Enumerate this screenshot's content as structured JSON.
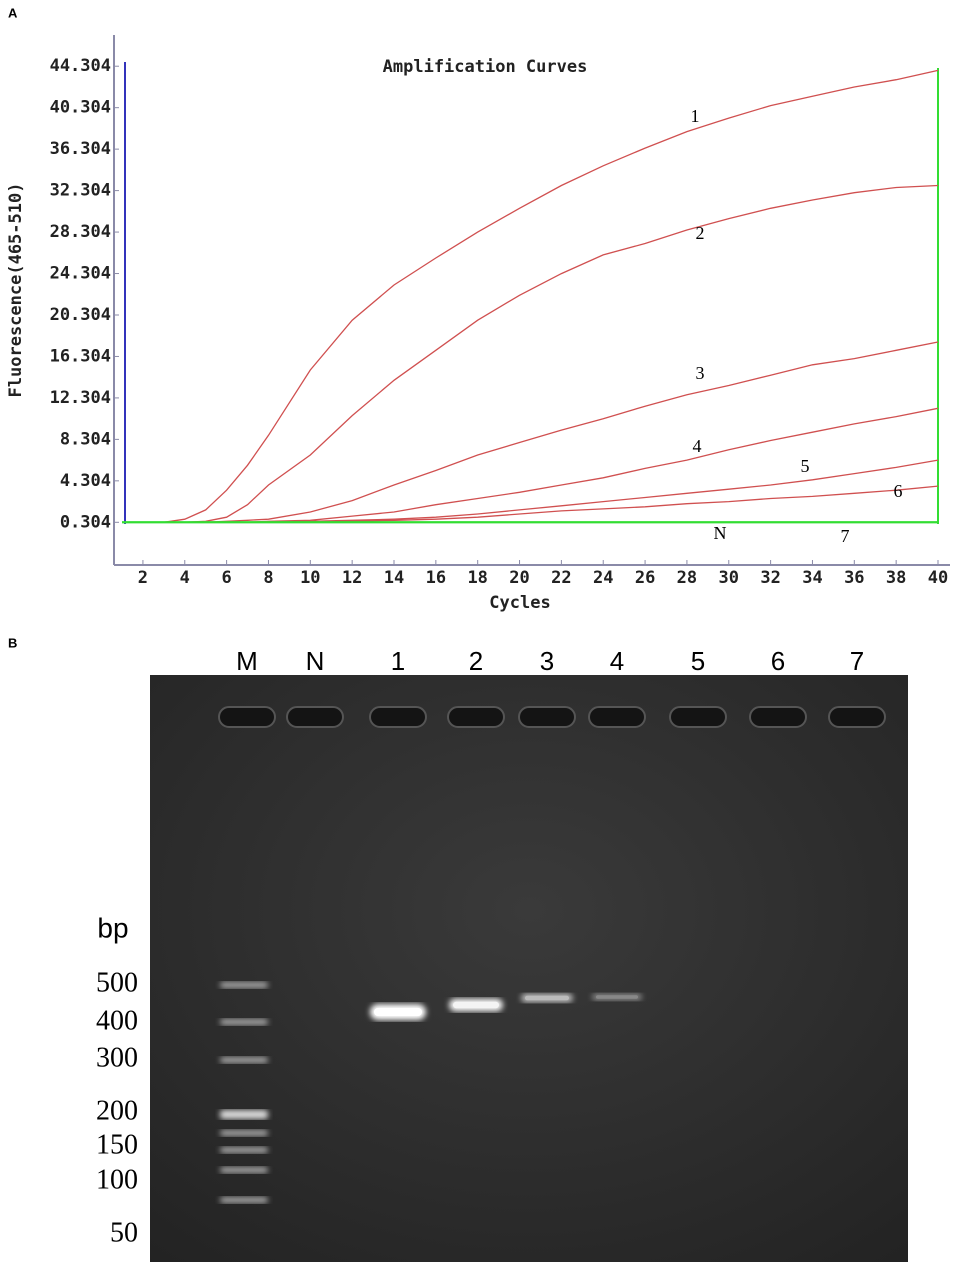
{
  "panel_labels": [
    "A",
    "B"
  ],
  "chart_data": {
    "type": "line",
    "title": "Amplification Curves",
    "x_label": "Cycles",
    "y_label": "Fluorescence(465-510)",
    "x": [
      3,
      4,
      5,
      6,
      7,
      8,
      10,
      12,
      14,
      16,
      18,
      20,
      22,
      24,
      26,
      28,
      30,
      32,
      34,
      36,
      38,
      40
    ],
    "series": [
      {
        "name": "1",
        "color": "#d05050",
        "values": [
          0.3,
          0.6,
          1.5,
          3.4,
          5.8,
          8.7,
          15,
          19.8,
          23.2,
          25.8,
          28.3,
          30.6,
          32.8,
          34.7,
          36.4,
          38,
          39.3,
          40.5,
          41.4,
          42.3,
          43,
          43.9
        ]
      },
      {
        "name": "2",
        "color": "#d05050",
        "values": [
          0.3,
          0.3,
          0.4,
          0.8,
          2,
          3.9,
          6.8,
          10.6,
          14,
          16.9,
          19.8,
          22.2,
          24.3,
          26.1,
          27.2,
          28.5,
          29.6,
          30.6,
          31.4,
          32.1,
          32.6,
          32.8
        ]
      },
      {
        "name": "3",
        "color": "#d05050",
        "values": [
          0.3,
          0.3,
          0.3,
          0.4,
          0.5,
          0.6,
          1.3,
          2.4,
          3.9,
          5.3,
          6.8,
          8,
          9.2,
          10.3,
          11.5,
          12.6,
          13.5,
          14.5,
          15.5,
          16.1,
          16.9,
          17.7
        ]
      },
      {
        "name": "4",
        "color": "#d05050",
        "values": [
          0.3,
          0.3,
          0.3,
          0.3,
          0.3,
          0.4,
          0.5,
          0.9,
          1.3,
          2,
          2.6,
          3.2,
          3.9,
          4.6,
          5.5,
          6.3,
          7.3,
          8.2,
          9,
          9.8,
          10.5,
          11.3
        ]
      },
      {
        "name": "5",
        "color": "#d05050",
        "values": [
          0.3,
          0.3,
          0.3,
          0.3,
          0.3,
          0.3,
          0.4,
          0.5,
          0.6,
          0.8,
          1.1,
          1.5,
          1.9,
          2.3,
          2.7,
          3.1,
          3.5,
          3.9,
          4.4,
          5,
          5.6,
          6.3
        ]
      },
      {
        "name": "6",
        "color": "#d05050",
        "values": [
          0.3,
          0.3,
          0.3,
          0.3,
          0.3,
          0.3,
          0.3,
          0.4,
          0.5,
          0.6,
          0.8,
          1.1,
          1.4,
          1.6,
          1.8,
          2.1,
          2.3,
          2.6,
          2.8,
          3.1,
          3.4,
          3.8
        ]
      },
      {
        "name": "N",
        "color": "#33dd33",
        "values": [
          0.304,
          0.304,
          0.304,
          0.304,
          0.304,
          0.304,
          0.304,
          0.304,
          0.304,
          0.304,
          0.304,
          0.304,
          0.304,
          0.304,
          0.304,
          0.304,
          0.304,
          0.304,
          0.304,
          0.304,
          0.304,
          0.304
        ]
      },
      {
        "name": "7",
        "color": "#33dd33",
        "values": [
          0.304,
          0.304,
          0.304,
          0.304,
          0.304,
          0.304,
          0.304,
          0.304,
          0.304,
          0.304,
          0.304,
          0.304,
          0.304,
          0.304,
          0.304,
          0.304,
          0.304,
          0.304,
          0.304,
          0.304,
          0.304,
          0.304
        ]
      }
    ],
    "xlim": [
      1,
      40
    ],
    "xticks": [
      2,
      4,
      6,
      8,
      10,
      12,
      14,
      16,
      18,
      20,
      22,
      24,
      26,
      28,
      30,
      32,
      34,
      36,
      38,
      40
    ],
    "ylim": [
      -1.5,
      45
    ],
    "yticks": [
      0.304,
      4.304,
      8.304,
      12.304,
      16.304,
      20.304,
      24.304,
      28.304,
      32.304,
      36.304,
      40.304,
      44.304
    ]
  },
  "gel": {
    "lanes": [
      "M",
      "N",
      "1",
      "2",
      "3",
      "4",
      "5",
      "6",
      "7"
    ],
    "unit": "bp",
    "sizes": [
      "500",
      "400",
      "300",
      "200",
      "150",
      "100",
      "50"
    ]
  }
}
